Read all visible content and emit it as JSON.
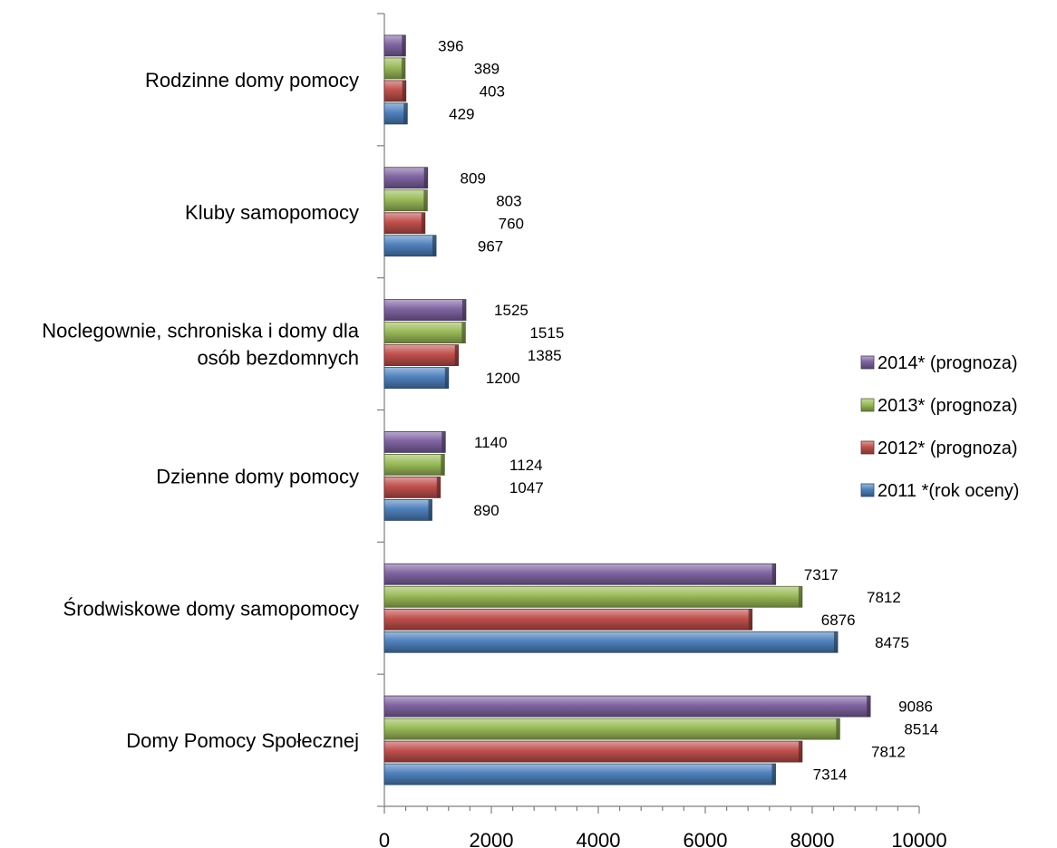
{
  "chart_data": {
    "type": "bar",
    "orientation": "horizontal",
    "categories": [
      "Domy Pomocy Społecznej",
      "Środwiskowe domy samopomocy",
      "Dzienne domy pomocy",
      "Noclegownie, schroniska i domy dla osób bezdomnych",
      "Kluby samopomocy",
      "Rodzinne domy pomocy"
    ],
    "category_label_lines": [
      [
        "Domy Pomocy Społecznej"
      ],
      [
        "Środwiskowe domy samopomocy"
      ],
      [
        "Dzienne domy pomocy"
      ],
      [
        "Noclegownie, schroniska i domy dla",
        "osób bezdomnych"
      ],
      [
        "Kluby samopomocy"
      ],
      [
        "Rodzinne domy pomocy"
      ]
    ],
    "series": [
      {
        "name": "2011 *(rok oceny)",
        "color": "#4F81BD",
        "values": [
          7314,
          8475,
          890,
          1200,
          967,
          429
        ]
      },
      {
        "name": "2012* (prognoza)",
        "color": "#C0504D",
        "values": [
          7812,
          6876,
          1047,
          1385,
          760,
          403
        ]
      },
      {
        "name": "2013* (prognoza)",
        "color": "#9BBB59",
        "values": [
          8514,
          7812,
          1124,
          1515,
          803,
          389
        ]
      },
      {
        "name": "2014* (prognoza)",
        "color": "#8064A2",
        "values": [
          9086,
          7317,
          1140,
          1525,
          809,
          396
        ]
      }
    ],
    "xlim": [
      0,
      10000
    ],
    "x_ticks": [
      0,
      2000,
      4000,
      6000,
      8000,
      10000
    ],
    "title": "",
    "xlabel": "",
    "ylabel": "",
    "grid": false,
    "legend_position": "right"
  }
}
